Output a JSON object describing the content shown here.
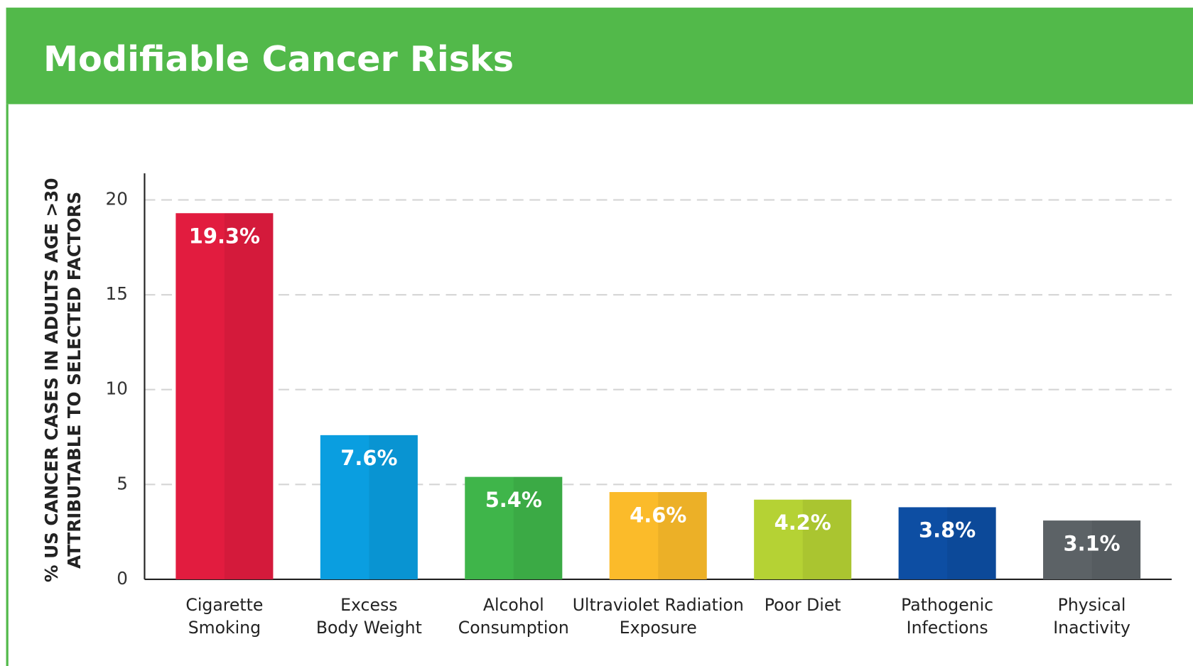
{
  "chart_data": {
    "type": "bar",
    "title": "Modifiable Cancer Risks",
    "ylabel": [
      "% US CANCER CASES IN ADULTS AGE >30",
      "ATTRIBUTABLE TO SELECTED FACTORS"
    ],
    "categories": [
      [
        "Cigarette",
        "Smoking"
      ],
      [
        "Excess",
        "Body Weight"
      ],
      [
        "Alcohol",
        "Consumption"
      ],
      [
        "Ultraviolet Radiation",
        "Exposure"
      ],
      [
        "Poor Diet"
      ],
      [
        "Pathogenic",
        "Infections"
      ],
      [
        "Physical",
        "Inactivity"
      ]
    ],
    "values": [
      19.3,
      7.6,
      5.4,
      4.6,
      4.2,
      3.8,
      3.1
    ],
    "value_labels": [
      "19.3%",
      "7.6%",
      "5.4%",
      "4.6%",
      "4.2%",
      "3.8%",
      "3.1%"
    ],
    "colors": [
      "#e21c3f",
      "#0a9ee0",
      "#3fb54a",
      "#fbbb2a",
      "#b5d234",
      "#0d4ea3",
      "#5c6266"
    ],
    "ylim": [
      0,
      21.4
    ],
    "yticks": [
      0,
      5,
      10,
      15,
      20
    ],
    "grid": true
  }
}
